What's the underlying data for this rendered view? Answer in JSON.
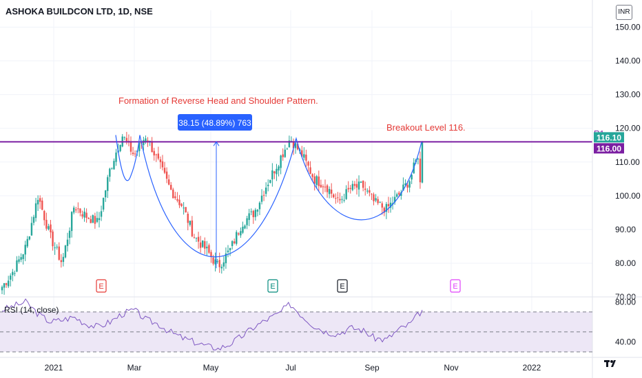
{
  "header": {
    "title": "ASHOKA BUILDCON LTD, 1D, NSE",
    "currency": "INR"
  },
  "colors": {
    "up": "#26a69a",
    "down": "#ef5350",
    "resistance": "#7b1fa2",
    "pattern_curve": "#2962ff",
    "annotation_text": "#e53935",
    "measure_box": "#2962ff",
    "rsi_line": "#7e57c2",
    "rsi_band": "#ede7f6"
  },
  "chart_data": [
    {
      "type": "candlestick",
      "symbol": "ASHOKA BUILDCON LTD",
      "interval": "1D",
      "exchange": "NSE",
      "ylim": [
        70,
        155
      ],
      "yticks": [
        "150.00",
        "140.00",
        "130.00",
        "120.00",
        "110.00",
        "100.00",
        "90.00",
        "80.00",
        "70.00"
      ],
      "xticks": [
        "2021",
        "Mar",
        "May",
        "Jul",
        "Sep",
        "Nov",
        "2022"
      ],
      "price_tags": {
        "current": "116.10",
        "level": "116.00"
      },
      "resistance": {
        "label": "R1",
        "value": 116
      },
      "annotations": {
        "pattern": "Formation of Reverse Head and Shoulder Pattern.",
        "breakout": "Breakout Level 116.",
        "measure": "38.15 (48.89%) 763"
      },
      "earnings_markers": [
        "E",
        "E",
        "E",
        "E"
      ],
      "pattern_keypoints": [
        {
          "date": "Feb",
          "value": 105
        },
        {
          "date": "Mar",
          "value": 118
        },
        {
          "date": "May",
          "value": 76
        },
        {
          "date": "Jul",
          "value": 117
        },
        {
          "date": "Aug",
          "value": 89
        },
        {
          "date": "Sep",
          "value": 116
        }
      ],
      "price_path": [
        {
          "x": "Dec 2020",
          "value": 73
        },
        {
          "x": "Dec 2020",
          "value": 78
        },
        {
          "x": "Dec 2020",
          "value": 85
        },
        {
          "x": "Jan 2021",
          "value": 100
        },
        {
          "x": "Jan 2021",
          "value": 88
        },
        {
          "x": "Jan 2021",
          "value": 80
        },
        {
          "x": "Jan 2021",
          "value": 97
        },
        {
          "x": "Jan 2021",
          "value": 94
        },
        {
          "x": "Feb 2021",
          "value": 92
        },
        {
          "x": "Feb 2021",
          "value": 108
        },
        {
          "x": "Feb 2021",
          "value": 118
        },
        {
          "x": "Mar 2021",
          "value": 112
        },
        {
          "x": "Mar 2021",
          "value": 118
        },
        {
          "x": "Mar 2021",
          "value": 110
        },
        {
          "x": "Apr 2021",
          "value": 102
        },
        {
          "x": "Apr 2021",
          "value": 97
        },
        {
          "x": "Apr 2021",
          "value": 88
        },
        {
          "x": "Apr 2021",
          "value": 84
        },
        {
          "x": "May 2021",
          "value": 79
        },
        {
          "x": "May 2021",
          "value": 84
        },
        {
          "x": "May 2021",
          "value": 92
        },
        {
          "x": "Jun 2021",
          "value": 95
        },
        {
          "x": "Jun 2021",
          "value": 103
        },
        {
          "x": "Jun 2021",
          "value": 110
        },
        {
          "x": "Jul 2021",
          "value": 117
        },
        {
          "x": "Jul 2021",
          "value": 112
        },
        {
          "x": "Jul 2021",
          "value": 105
        },
        {
          "x": "Aug 2021",
          "value": 103
        },
        {
          "x": "Aug 2021",
          "value": 98
        },
        {
          "x": "Aug 2021",
          "value": 102
        },
        {
          "x": "Sep 2021",
          "value": 103
        },
        {
          "x": "Sep 2021",
          "value": 98
        },
        {
          "x": "Sep 2021",
          "value": 96
        },
        {
          "x": "Sep 2021",
          "value": 100
        },
        {
          "x": "Oct 2021",
          "value": 105
        },
        {
          "x": "Oct 2021",
          "value": 116
        }
      ]
    },
    {
      "type": "line",
      "title": "RSI (14, close)",
      "ylim": [
        30,
        85
      ],
      "yticks": [
        "80.00",
        "40.00"
      ],
      "levels": [
        70,
        50,
        30
      ],
      "series": [
        {
          "name": "RSI (14, close)",
          "values": [
            72,
            76,
            80,
            68,
            60,
            62,
            65,
            58,
            55,
            60,
            68,
            72,
            62,
            58,
            50,
            44,
            40,
            36,
            33,
            38,
            46,
            55,
            62,
            68,
            78,
            66,
            56,
            50,
            48,
            54,
            52,
            44,
            42,
            52,
            58,
            72
          ]
        }
      ]
    }
  ]
}
